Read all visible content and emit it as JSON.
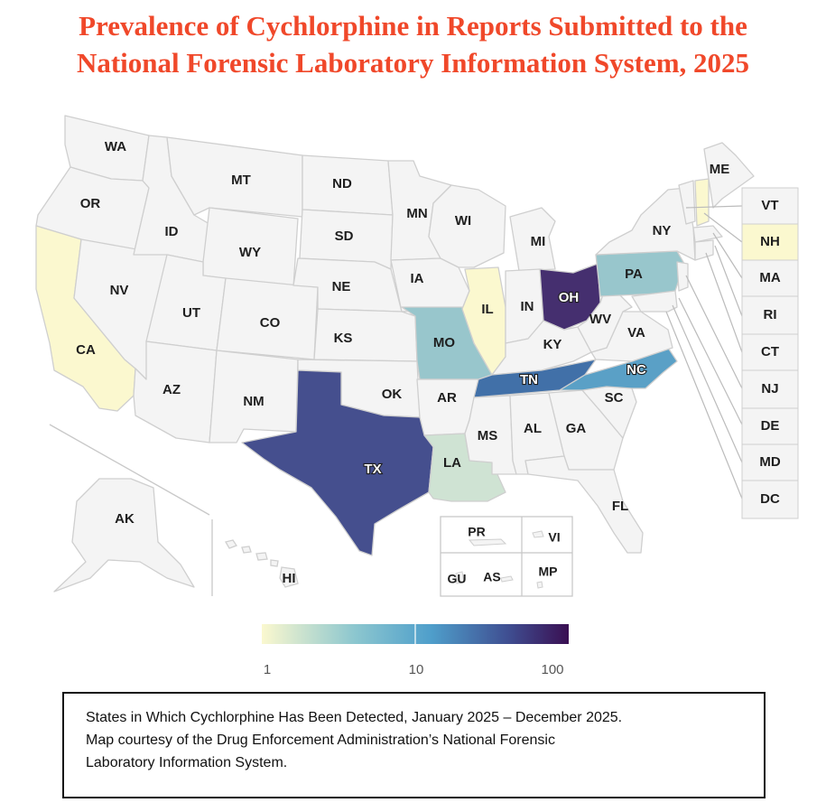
{
  "title": {
    "line1": "Prevalence of Cychlorphine in Reports Submitted to the",
    "line2": "National Forensic Laboratory Information System, 2025"
  },
  "states": {
    "WA": "WA",
    "OR": "OR",
    "CA": "CA",
    "NV": "NV",
    "ID": "ID",
    "MT": "MT",
    "WY": "WY",
    "UT": "UT",
    "AZ": "AZ",
    "CO": "CO",
    "NM": "NM",
    "ND": "ND",
    "SD": "SD",
    "NE": "NE",
    "KS": "KS",
    "OK": "OK",
    "TX": "TX",
    "MN": "MN",
    "IA": "IA",
    "MO": "MO",
    "AR": "AR",
    "LA": "LA",
    "WI": "WI",
    "IL": "IL",
    "MI": "MI",
    "IN": "IN",
    "OH": "OH",
    "KY": "KY",
    "TN": "TN",
    "MS": "MS",
    "AL": "AL",
    "GA": "GA",
    "FL": "FL",
    "SC": "SC",
    "NC": "NC",
    "VA": "VA",
    "WV": "WV",
    "PA": "PA",
    "NY": "NY",
    "ME": "ME",
    "AK": "AK",
    "HI": "HI"
  },
  "side_states": {
    "VT": "VT",
    "NH": "NH",
    "MA": "MA",
    "RI": "RI",
    "CT": "CT",
    "NJ": "NJ",
    "DE": "DE",
    "MD": "MD",
    "DC": "DC"
  },
  "territories": {
    "PR": "PR",
    "VI": "VI",
    "GU": "GU",
    "AS": "AS",
    "MP": "MP"
  },
  "detections": {
    "CA": "low",
    "IL": "low",
    "NH": "low",
    "LA": "low-mid",
    "PA": "mid",
    "MO": "mid",
    "NC": "mid-high",
    "TN": "high",
    "TX": "very-high",
    "OH": "highest"
  },
  "colors": {
    "none": "#f4f4f4",
    "low": "#fbf8cf",
    "low-mid": "#cfe3d3",
    "mid": "#98c6cc",
    "mid-high": "#5aa0c6",
    "high": "#4170a8",
    "very-high": "#454f8e",
    "highest": "#452f6f",
    "border": "#cfcfcf"
  },
  "legend": {
    "ticks": [
      "1",
      "10",
      "100"
    ],
    "scale": "log",
    "gradient": [
      "#fbf8cf",
      "#8dc7cf",
      "#4f9fcb",
      "#3f4f92",
      "#3a0f52"
    ]
  },
  "caption": {
    "line1": "States in Which Cychlorphine Has Been Detected, January 2025 – December 2025.",
    "line2": "Map courtesy of the Drug Enforcement Administration’s National Forensic",
    "line3": "Laboratory Information System."
  }
}
